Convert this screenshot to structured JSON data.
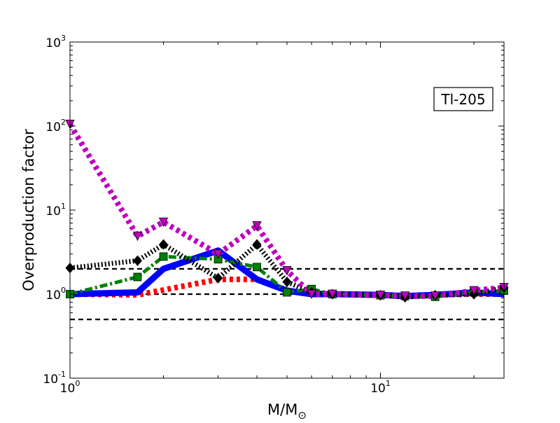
{
  "chart_data": {
    "type": "line",
    "title": "",
    "annotation": "Tl-205",
    "xlabel": "M/M",
    "xlabel_subscript": "⊙",
    "ylabel": "Overproduction factor",
    "xscale": "log",
    "yscale": "log",
    "xlim": [
      1,
      25
    ],
    "ylim": [
      0.1,
      1000
    ],
    "x_ticks": [
      {
        "base": "10",
        "exp": "0",
        "value": 1
      },
      {
        "base": "10",
        "exp": "1",
        "value": 10
      }
    ],
    "y_ticks": [
      {
        "base": "10",
        "exp": "-1",
        "value": 0.1
      },
      {
        "base": "10",
        "exp": "0",
        "value": 1
      },
      {
        "base": "10",
        "exp": "1",
        "value": 10
      },
      {
        "base": "10",
        "exp": "2",
        "value": 100
      },
      {
        "base": "10",
        "exp": "3",
        "value": 1000
      }
    ],
    "reference_lines": [
      0.5,
      1,
      2
    ],
    "series": [
      {
        "color": "#ff0000",
        "linestyle": "dotted",
        "linewidth": 8,
        "marker": "none",
        "x": [
          1,
          1.65,
          2,
          3,
          4,
          5,
          6,
          7,
          10,
          12,
          15,
          20,
          25
        ],
        "y": [
          1.0,
          0.98,
          1.12,
          1.5,
          1.5,
          1.1,
          1.0,
          1.0,
          0.98,
          0.95,
          0.98,
          1.0,
          1.0
        ]
      },
      {
        "color": "#0000ff",
        "linestyle": "solid",
        "linewidth": 9,
        "marker": "none",
        "x": [
          1,
          1.65,
          2,
          3,
          4,
          5,
          6,
          7,
          10,
          12,
          15,
          20,
          25
        ],
        "y": [
          1.0,
          1.05,
          2.0,
          3.3,
          1.5,
          1.1,
          1.0,
          1.0,
          0.98,
          0.95,
          0.98,
          1.05,
          1.0
        ]
      },
      {
        "color": "#008000",
        "linestyle": "dashdot",
        "linewidth": 5,
        "marker": "square",
        "x": [
          1,
          1.65,
          2,
          3,
          4,
          5,
          6,
          7,
          10,
          12,
          15,
          20,
          25
        ],
        "y": [
          1.0,
          1.6,
          2.8,
          2.6,
          2.1,
          1.05,
          1.15,
          1.0,
          0.97,
          0.95,
          0.93,
          1.05,
          1.1
        ]
      },
      {
        "color": "#000000",
        "linestyle": "dotted-fine",
        "linewidth": 7,
        "marker": "diamond",
        "x": [
          1,
          1.65,
          2,
          3,
          4,
          5,
          6,
          7,
          10,
          12,
          15,
          20,
          25
        ],
        "y": [
          2.05,
          2.5,
          3.9,
          1.55,
          3.9,
          1.4,
          1.05,
          1.0,
          0.97,
          0.92,
          0.97,
          1.0,
          1.2
        ]
      },
      {
        "color": "#bf00bf",
        "linestyle": "dotted",
        "linewidth": 8,
        "marker": "triangle-down",
        "x": [
          1,
          1.65,
          2,
          3,
          4,
          5,
          6,
          7,
          10,
          12,
          15,
          20,
          25
        ],
        "y": [
          105,
          4.9,
          7.2,
          3.0,
          6.5,
          1.9,
          1.0,
          1.0,
          0.97,
          0.95,
          0.95,
          1.1,
          1.2
        ]
      }
    ]
  }
}
